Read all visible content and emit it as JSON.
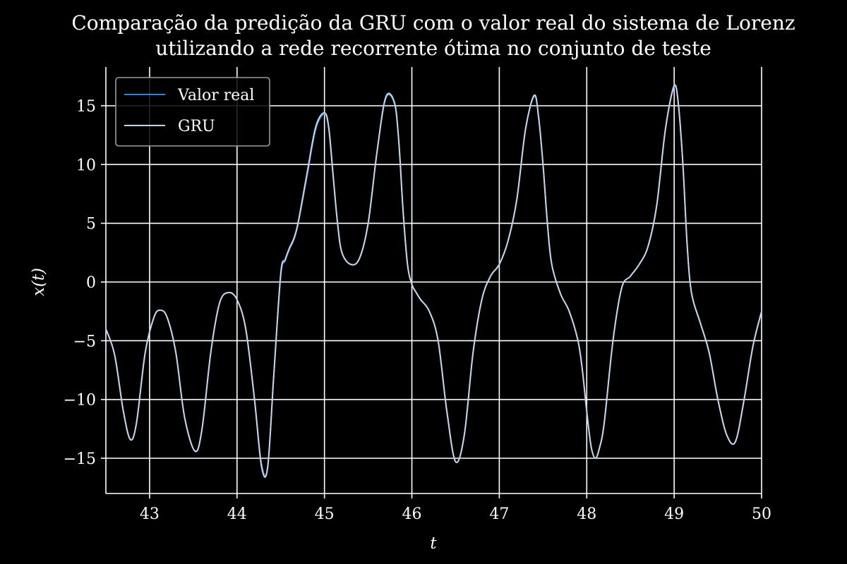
{
  "chart_data": {
    "type": "line",
    "title_lines": [
      "Comparação da predição da GRU com o valor real do sistema de Lorenz",
      "utilizando a rede recorrente ótima no conjunto de teste"
    ],
    "xlabel": "t",
    "ylabel": "x(t)",
    "xlim": [
      42.5,
      50
    ],
    "ylim": [
      -18,
      18.3
    ],
    "xticks": [
      43,
      44,
      45,
      46,
      47,
      48,
      49,
      50
    ],
    "xtick_labels": [
      "43",
      "44",
      "45",
      "46",
      "47",
      "48",
      "49",
      "50"
    ],
    "yticks": [
      -15,
      -10,
      -5,
      0,
      5,
      10,
      15
    ],
    "ytick_labels": [
      "−15",
      "−10",
      "−5",
      "0",
      "5",
      "10",
      "15"
    ],
    "grid": true,
    "legend_position": "top-left",
    "x": [
      42.5,
      42.6,
      42.7,
      42.78,
      42.85,
      42.95,
      43.05,
      43.12,
      43.2,
      43.3,
      43.4,
      43.52,
      43.6,
      43.7,
      43.8,
      43.9,
      44.0,
      44.1,
      44.2,
      44.28,
      44.35,
      44.42,
      44.5,
      44.55,
      44.6,
      44.65,
      44.7,
      44.8,
      44.9,
      45.0,
      45.05,
      45.1,
      45.15,
      45.2,
      45.3,
      45.4,
      45.5,
      45.6,
      45.7,
      45.8,
      45.85,
      45.9,
      45.95,
      46.0,
      46.05,
      46.1,
      46.2,
      46.3,
      46.4,
      46.5,
      46.6,
      46.7,
      46.8,
      46.9,
      47.0,
      47.1,
      47.2,
      47.3,
      47.4,
      47.45,
      47.5,
      47.55,
      47.6,
      47.7,
      47.8,
      47.9,
      47.95,
      48.0,
      48.05,
      48.1,
      48.15,
      48.2,
      48.3,
      48.4,
      48.5,
      48.6,
      48.7,
      48.8,
      48.9,
      49.0,
      49.05,
      49.1,
      49.15,
      49.2,
      49.3,
      49.4,
      49.5,
      49.6,
      49.7,
      49.8,
      49.9,
      50.0
    ],
    "series": [
      {
        "name": "Valor real",
        "color": "#2e86de",
        "values": [
          -4.0,
          -6.2,
          -11.0,
          -13.4,
          -12.0,
          -6.0,
          -3.0,
          -2.4,
          -3.0,
          -6.0,
          -11.5,
          -14.4,
          -12.5,
          -6.0,
          -1.8,
          -0.9,
          -1.5,
          -4.0,
          -10.0,
          -15.5,
          -15.8,
          -8.0,
          0.5,
          1.8,
          2.8,
          3.6,
          5.0,
          9.0,
          13.0,
          14.3,
          13.0,
          9.0,
          5.0,
          2.5,
          1.5,
          2.0,
          5.0,
          11.0,
          15.6,
          15.2,
          12.0,
          6.0,
          1.5,
          -0.2,
          -0.9,
          -1.5,
          -2.5,
          -5.0,
          -11.0,
          -15.3,
          -13.0,
          -6.0,
          -1.5,
          0.5,
          1.5,
          3.5,
          7.0,
          13.0,
          15.8,
          14.0,
          10.0,
          5.0,
          1.5,
          -1.0,
          -2.5,
          -5.0,
          -7.5,
          -11.0,
          -14.0,
          -15.0,
          -14.0,
          -12.0,
          -5.0,
          -0.5,
          0.5,
          1.5,
          3.0,
          6.5,
          13.0,
          16.6,
          15.0,
          10.0,
          3.0,
          -1.0,
          -3.5,
          -6.0,
          -10.0,
          -13.0,
          -13.6,
          -10.0,
          -5.5,
          -2.5
        ]
      },
      {
        "name": "GRU",
        "color": "#c8d4e6",
        "values": [
          -4.0,
          -6.2,
          -11.0,
          -13.4,
          -12.0,
          -6.0,
          -3.0,
          -2.4,
          -3.0,
          -6.0,
          -11.5,
          -14.4,
          -12.5,
          -6.0,
          -1.8,
          -0.9,
          -1.5,
          -4.0,
          -10.0,
          -15.7,
          -15.8,
          -8.0,
          0.7,
          1.9,
          2.9,
          3.7,
          5.1,
          9.2,
          13.2,
          14.4,
          13.1,
          9.0,
          5.0,
          2.5,
          1.5,
          2.0,
          5.0,
          11.0,
          15.7,
          15.3,
          12.0,
          6.0,
          1.5,
          -0.2,
          -0.9,
          -1.5,
          -2.5,
          -5.0,
          -11.0,
          -15.3,
          -13.0,
          -6.0,
          -1.5,
          0.5,
          1.5,
          3.5,
          7.0,
          13.0,
          15.9,
          14.0,
          10.0,
          5.0,
          1.5,
          -1.0,
          -2.5,
          -5.0,
          -7.5,
          -11.0,
          -14.0,
          -15.0,
          -14.0,
          -12.0,
          -5.0,
          -0.5,
          0.5,
          1.5,
          3.0,
          6.5,
          13.0,
          16.7,
          15.0,
          10.0,
          3.0,
          -1.0,
          -3.5,
          -6.0,
          -10.0,
          -13.0,
          -13.6,
          -10.0,
          -5.5,
          -2.5
        ]
      }
    ]
  }
}
